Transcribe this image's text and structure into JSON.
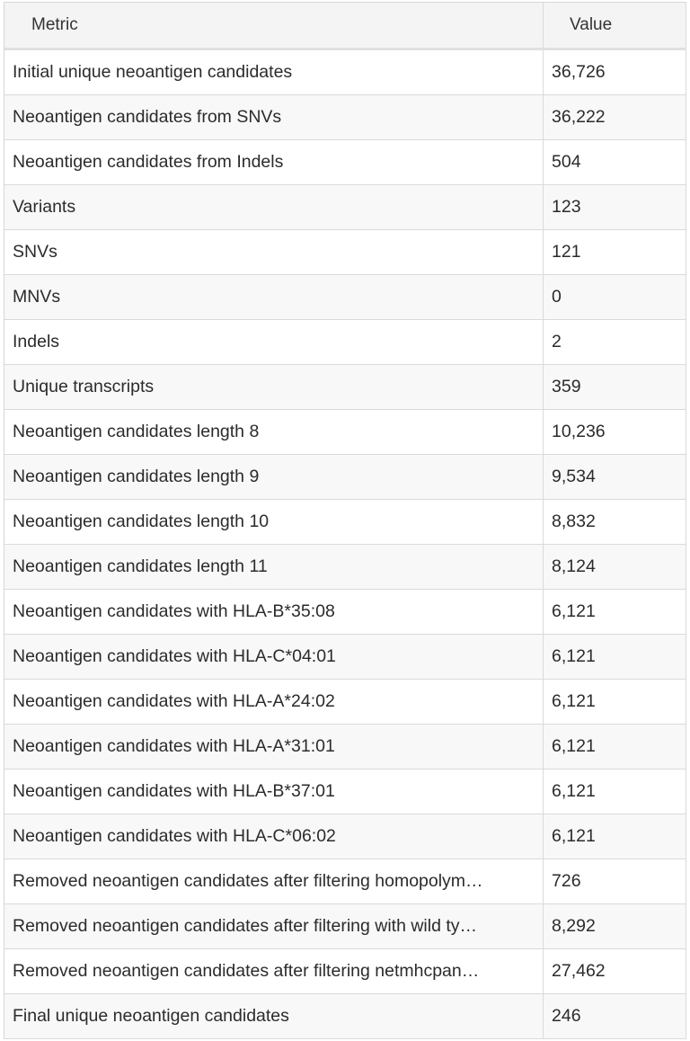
{
  "table": {
    "headers": {
      "metric": "Metric",
      "value": "Value"
    },
    "rows": [
      {
        "metric": "Initial unique neoantigen candidates",
        "value": "36,726"
      },
      {
        "metric": "Neoantigen candidates from SNVs",
        "value": "36,222"
      },
      {
        "metric": "Neoantigen candidates from Indels",
        "value": "504"
      },
      {
        "metric": "Variants",
        "value": "123"
      },
      {
        "metric": "SNVs",
        "value": "121"
      },
      {
        "metric": "MNVs",
        "value": "0"
      },
      {
        "metric": "Indels",
        "value": "2"
      },
      {
        "metric": "Unique transcripts",
        "value": "359"
      },
      {
        "metric": "Neoantigen candidates length 8",
        "value": "10,236"
      },
      {
        "metric": "Neoantigen candidates length 9",
        "value": "9,534"
      },
      {
        "metric": "Neoantigen candidates length 10",
        "value": "8,832"
      },
      {
        "metric": "Neoantigen candidates length 11",
        "value": "8,124"
      },
      {
        "metric": "Neoantigen candidates with HLA-B*35:08",
        "value": "6,121"
      },
      {
        "metric": "Neoantigen candidates with HLA-C*04:01",
        "value": "6,121"
      },
      {
        "metric": "Neoantigen candidates with HLA-A*24:02",
        "value": "6,121"
      },
      {
        "metric": "Neoantigen candidates with HLA-A*31:01",
        "value": "6,121"
      },
      {
        "metric": "Neoantigen candidates with HLA-B*37:01",
        "value": "6,121"
      },
      {
        "metric": "Neoantigen candidates with HLA-C*06:02",
        "value": "6,121"
      },
      {
        "metric": "Removed neoantigen candidates after filtering homopolym…",
        "value": "726"
      },
      {
        "metric": "Removed neoantigen candidates after filtering with wild ty…",
        "value": "8,292"
      },
      {
        "metric": "Removed neoantigen candidates after filtering netmhcpan…",
        "value": "27,462"
      },
      {
        "metric": "Final unique neoantigen candidates",
        "value": "246"
      }
    ]
  }
}
